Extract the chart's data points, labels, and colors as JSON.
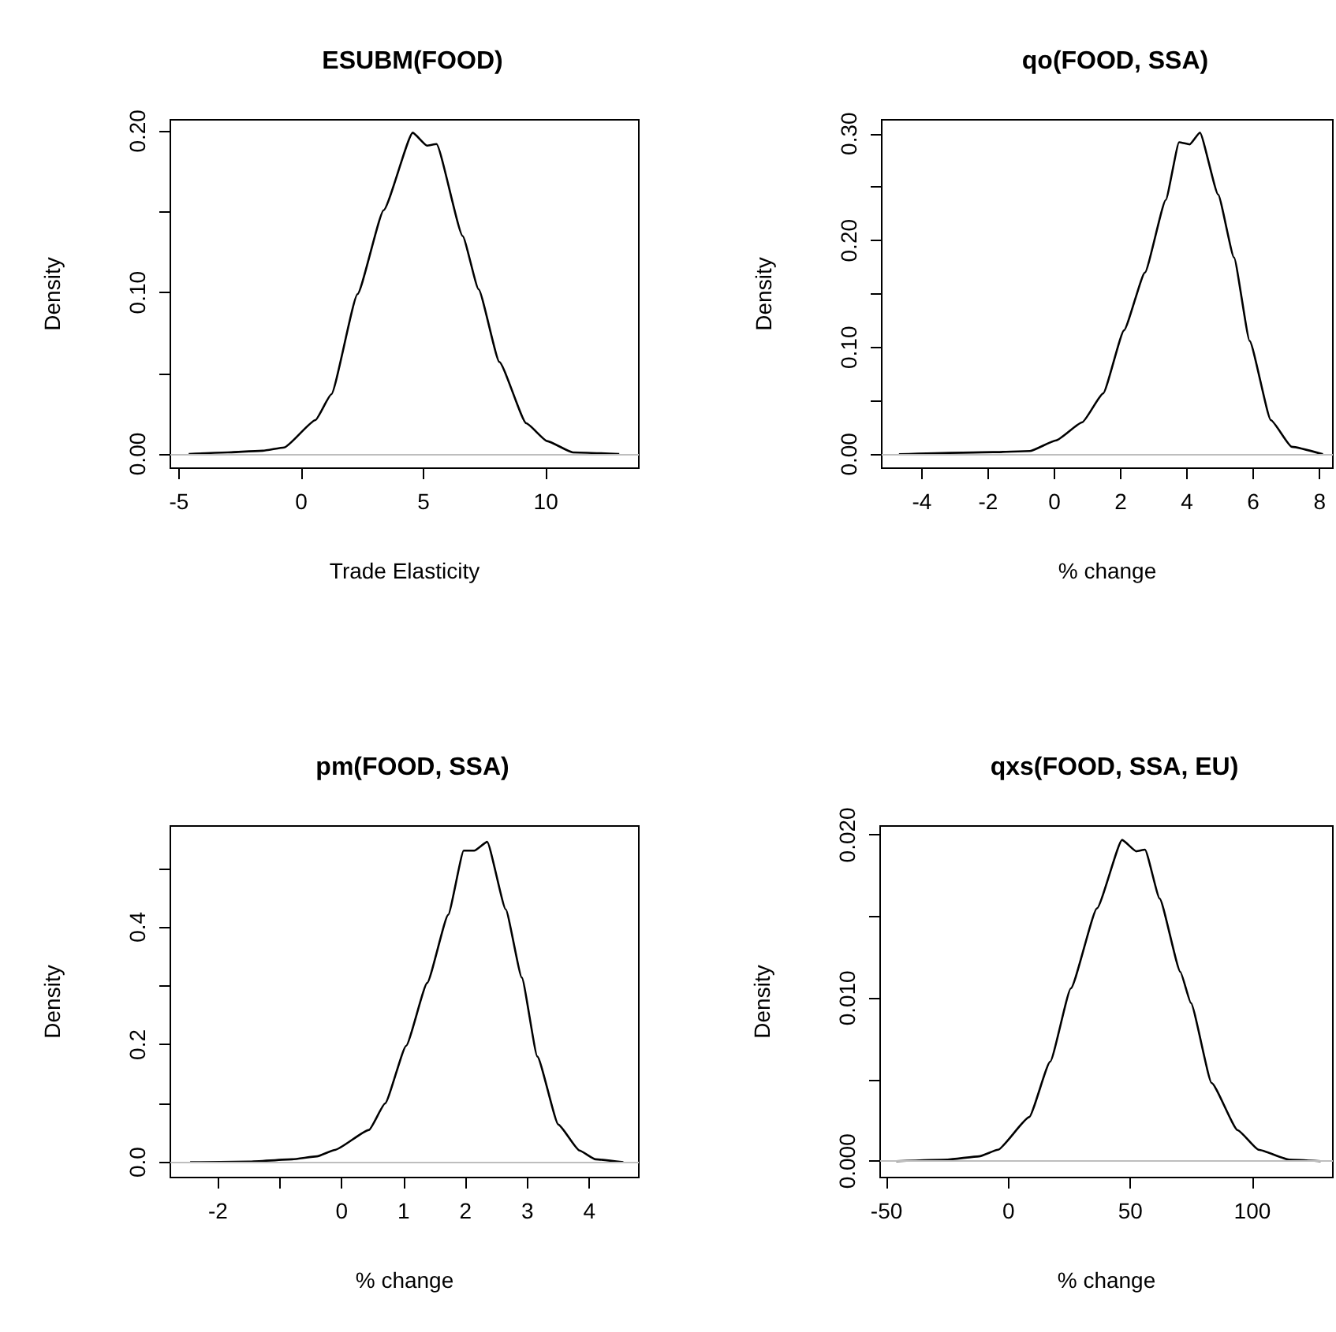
{
  "chart_data": [
    {
      "type": "line",
      "title": "ESUBM(FOOD)",
      "xlabel": "Trade Elasticity",
      "ylabel": "Density",
      "color": "#000000",
      "marker": "none",
      "line_style": "solid",
      "x": [
        -4.6,
        -3,
        -1.57,
        -0.7,
        0.58,
        1.23,
        2.3,
        3.37,
        4.56,
        5.14,
        5.53,
        6.6,
        7.25,
        8.1,
        9.2,
        10.05,
        11.1,
        13.0
      ],
      "values": [
        0,
        0.001,
        0.002,
        0.004,
        0.021,
        0.037,
        0.099,
        0.151,
        0.199,
        0.191,
        0.192,
        0.135,
        0.102,
        0.057,
        0.019,
        0.008,
        0.001,
        0
      ],
      "xlim": [
        -5.35,
        13.8
      ],
      "ylim": [
        -0.0088,
        0.207
      ],
      "xticks": [
        -5,
        0,
        5,
        10
      ],
      "yticks": [
        {
          "value": 0,
          "label": "0.00"
        },
        {
          "value": 0.05,
          "label": null
        },
        {
          "value": 0.1,
          "label": "0.10"
        },
        {
          "value": 0.15,
          "label": null
        },
        {
          "value": 0.2,
          "label": "0.20"
        }
      ],
      "ref_lines": [
        {
          "axis": "y",
          "value": 0,
          "color": "#bebebe"
        }
      ]
    },
    {
      "type": "line",
      "title": "qo(FOOD, SSA)",
      "xlabel": "% change",
      "ylabel": "Density",
      "color": "#000000",
      "marker": "none",
      "line_style": "solid",
      "x": [
        -4.69,
        -1.85,
        -0.74,
        0.05,
        0.84,
        1.47,
        2.1,
        2.73,
        3.36,
        3.76,
        4.08,
        4.39,
        4.94,
        5.42,
        5.89,
        6.53,
        7.16,
        8.1
      ],
      "values": [
        0,
        0.002,
        0.003,
        0.013,
        0.03,
        0.057,
        0.116,
        0.17,
        0.238,
        0.292,
        0.29,
        0.301,
        0.243,
        0.184,
        0.106,
        0.032,
        0.007,
        0
      ],
      "xlim": [
        -5.21,
        8.4
      ],
      "ylim": [
        -0.013,
        0.313
      ],
      "xticks": [
        -4,
        -2,
        0,
        2,
        4,
        6,
        8
      ],
      "yticks": [
        {
          "value": 0,
          "label": "0.00"
        },
        {
          "value": 0.05,
          "label": null
        },
        {
          "value": 0.1,
          "label": "0.10"
        },
        {
          "value": 0.15,
          "label": null
        },
        {
          "value": 0.2,
          "label": "0.20"
        },
        {
          "value": 0.25,
          "label": null
        },
        {
          "value": 0.3,
          "label": "0.30"
        }
      ],
      "ref_lines": [
        {
          "axis": "y",
          "value": 0,
          "color": "#bebebe"
        }
      ]
    },
    {
      "type": "line",
      "title": "pm(FOOD, SSA)",
      "xlabel": "% change",
      "ylabel": "Density",
      "color": "#000000",
      "marker": "none",
      "line_style": "solid",
      "x": [
        -2.45,
        -1.5,
        -0.8,
        -0.4,
        -0.11,
        0.44,
        0.7,
        1.04,
        1.38,
        1.72,
        1.97,
        2.14,
        2.35,
        2.65,
        2.91,
        3.16,
        3.5,
        3.84,
        4.1,
        4.55
      ],
      "values": [
        0,
        0.001,
        0.005,
        0.01,
        0.021,
        0.055,
        0.1,
        0.198,
        0.305,
        0.421,
        0.53,
        0.53,
        0.545,
        0.43,
        0.314,
        0.18,
        0.064,
        0.02,
        0.005,
        0
      ],
      "xlim": [
        -2.77,
        4.8
      ],
      "ylim": [
        -0.026,
        0.572
      ],
      "xticks": [
        -2,
        {
          "value": -1,
          "label": null
        },
        0,
        1,
        2,
        3,
        4
      ],
      "yticks": [
        {
          "value": 0,
          "label": "0.0"
        },
        {
          "value": 0.1,
          "label": null
        },
        {
          "value": 0.2,
          "label": "0.2"
        },
        {
          "value": 0.3,
          "label": null
        },
        {
          "value": 0.4,
          "label": "0.4"
        },
        {
          "value": 0.5,
          "label": null
        }
      ],
      "ref_lines": [
        {
          "axis": "y",
          "value": 0,
          "color": "#bebebe"
        }
      ]
    },
    {
      "type": "line",
      "title": "qxs(FOOD, SSA, EU)",
      "xlabel": "% change",
      "ylabel": "Density",
      "color": "#000000",
      "marker": "none",
      "line_style": "solid",
      "x": [
        -46,
        -25,
        -12,
        -4.3,
        8.5,
        17.1,
        25.6,
        36.3,
        46.6,
        52.4,
        56,
        62,
        70.5,
        74.8,
        83.3,
        94,
        102.6,
        115,
        128
      ],
      "values": [
        0,
        0.0001,
        0.0003,
        0.0007,
        0.0027,
        0.0061,
        0.0106,
        0.0155,
        0.0197,
        0.019,
        0.0191,
        0.0161,
        0.0116,
        0.0097,
        0.0048,
        0.0019,
        0.0007,
        0.0001,
        0
      ],
      "xlim": [
        -52.6,
        133
      ],
      "ylim": [
        -0.001,
        0.02055
      ],
      "xticks": [
        -50,
        0,
        50,
        100
      ],
      "yticks": [
        {
          "value": 0,
          "label": "0.000"
        },
        {
          "value": 0.005,
          "label": null
        },
        {
          "value": 0.01,
          "label": "0.010"
        },
        {
          "value": 0.015,
          "label": null
        },
        {
          "value": 0.02,
          "label": "0.020"
        }
      ],
      "ref_lines": [
        {
          "axis": "y",
          "value": 0,
          "color": "#bebebe"
        }
      ]
    }
  ]
}
